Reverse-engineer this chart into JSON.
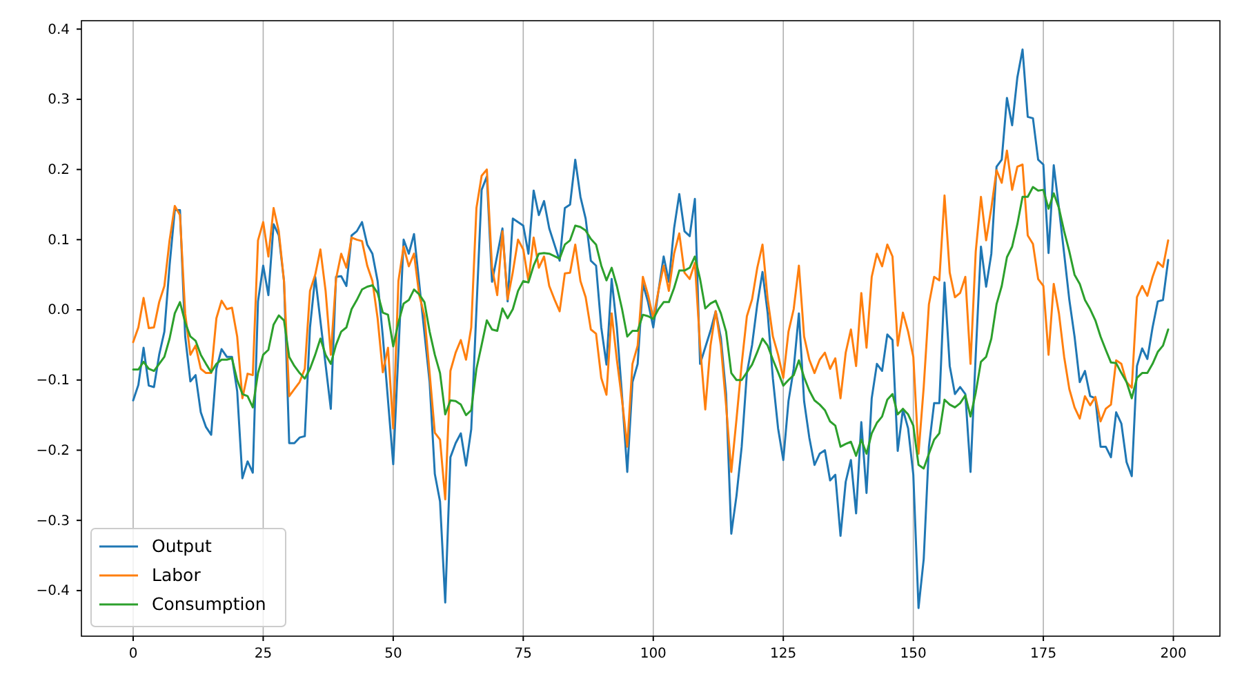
{
  "chart_data": {
    "type": "line",
    "xlim": [
      -9.95,
      208.95
    ],
    "xticks": [
      0,
      25,
      50,
      75,
      100,
      125,
      150,
      175,
      200
    ],
    "ylim": [
      -0.465,
      0.412
    ],
    "yticks": [
      {
        "value": -0.4,
        "label": "−0.4"
      },
      {
        "value": -0.3,
        "label": "−0.3"
      },
      {
        "value": -0.2,
        "label": "−0.2"
      },
      {
        "value": -0.1,
        "label": "−0.1"
      },
      {
        "value": 0,
        "label": "0.0"
      },
      {
        "value": 0.1,
        "label": "0.1"
      },
      {
        "value": 0.2,
        "label": "0.2"
      },
      {
        "value": 0.3,
        "label": "0.3"
      },
      {
        "value": 0.4,
        "label": "0.4"
      }
    ],
    "grid": "x",
    "legend": "bottom left",
    "marker": "none",
    "line_style": "solid",
    "series": [
      {
        "name": "Output",
        "color": "#1f77b4",
        "x": [
          0,
          1,
          2,
          3,
          4,
          5,
          6,
          7,
          8,
          9,
          10,
          11,
          12,
          13,
          14,
          15,
          16,
          17,
          18,
          19,
          20,
          21,
          22,
          23,
          24,
          25,
          26,
          27,
          28,
          29,
          30,
          31,
          32,
          33,
          34,
          35,
          38,
          39,
          40,
          41,
          42,
          43,
          44,
          45,
          46,
          47,
          48,
          50,
          52,
          53,
          54,
          57,
          58,
          59,
          60,
          61,
          62,
          63,
          64,
          65,
          66,
          67,
          68,
          69,
          71,
          72,
          73,
          75,
          76,
          77,
          78,
          79,
          80,
          82,
          83,
          84,
          85,
          86,
          87,
          88,
          89,
          90,
          91,
          92,
          93,
          94,
          95,
          96,
          97,
          98,
          99,
          100,
          101,
          102,
          103,
          104,
          105,
          106,
          107,
          108,
          109,
          111,
          112,
          113,
          114,
          115,
          116,
          117,
          118,
          119,
          120,
          121,
          122,
          123,
          124,
          125,
          126,
          127,
          128,
          129,
          130,
          131,
          132,
          133,
          134,
          135,
          136,
          137,
          138,
          139,
          140,
          141,
          142,
          143,
          144,
          145,
          146,
          147,
          148,
          149,
          150,
          151,
          152,
          153,
          154,
          155,
          156,
          157,
          158,
          159,
          160,
          161,
          162,
          163,
          164,
          165,
          166,
          167,
          168,
          169,
          170,
          171,
          172,
          173,
          174,
          175,
          176,
          177,
          178,
          179,
          180,
          181,
          182,
          183,
          184,
          185,
          186,
          187,
          188,
          189,
          190,
          191,
          192,
          193,
          194,
          195,
          196,
          197,
          198,
          199
        ],
        "values": [
          -0.129,
          -0.107,
          -0.054,
          -0.108,
          -0.11,
          -0.064,
          -0.031,
          0.063,
          0.142,
          0.142,
          -0.038,
          -0.102,
          -0.093,
          -0.146,
          -0.167,
          -0.178,
          -0.084,
          -0.056,
          -0.067,
          -0.067,
          -0.116,
          -0.24,
          -0.216,
          -0.232,
          0.012,
          0.063,
          0.021,
          0.122,
          0.106,
          0.041,
          -0.19,
          -0.19,
          -0.182,
          -0.18,
          -0.025,
          0.047,
          -0.141,
          0.047,
          0.048,
          0.034,
          0.106,
          0.112,
          0.125,
          0.093,
          0.08,
          0.041,
          -0.038,
          -0.22,
          0.1,
          0.08,
          0.108,
          -0.103,
          -0.234,
          -0.273,
          -0.417,
          -0.21,
          -0.19,
          -0.176,
          -0.222,
          -0.17,
          0.0,
          0.171,
          0.19,
          0.04,
          0.116,
          0.012,
          0.13,
          0.12,
          0.08,
          0.17,
          0.135,
          0.155,
          0.116,
          0.07,
          0.145,
          0.15,
          0.214,
          0.161,
          0.13,
          0.07,
          0.063,
          -0.025,
          -0.078,
          0.044,
          -0.025,
          -0.123,
          -0.231,
          -0.103,
          -0.077,
          0.037,
          0.011,
          -0.025,
          0.027,
          0.076,
          0.04,
          0.116,
          0.165,
          0.112,
          0.105,
          0.158,
          -0.077,
          -0.03,
          -0.002,
          -0.04,
          -0.12,
          -0.319,
          -0.265,
          -0.195,
          -0.09,
          -0.05,
          0.008,
          0.054,
          -0.005,
          -0.098,
          -0.169,
          -0.214,
          -0.13,
          -0.084,
          -0.005,
          -0.13,
          -0.182,
          -0.221,
          -0.205,
          -0.2,
          -0.243,
          -0.235,
          -0.322,
          -0.245,
          -0.214,
          -0.29,
          -0.16,
          -0.261,
          -0.126,
          -0.077,
          -0.087,
          -0.035,
          -0.043,
          -0.201,
          -0.142,
          -0.169,
          -0.235,
          -0.425,
          -0.355,
          -0.195,
          -0.133,
          -0.133,
          0.039,
          -0.08,
          -0.12,
          -0.11,
          -0.12,
          -0.231,
          -0.064,
          0.09,
          0.033,
          0.08,
          0.204,
          0.214,
          0.302,
          0.263,
          0.331,
          0.371,
          0.275,
          0.273,
          0.214,
          0.207,
          0.081,
          0.206,
          0.145,
          0.08,
          0.014,
          -0.038,
          -0.103,
          -0.087,
          -0.123,
          -0.126,
          -0.195,
          -0.195,
          -0.21,
          -0.146,
          -0.162,
          -0.217,
          -0.237,
          -0.08,
          -0.055,
          -0.07,
          -0.025,
          0.012,
          0.014,
          0.071
        ]
      },
      {
        "name": "Labor",
        "color": "#ff7f0e",
        "x": [
          0,
          1,
          2,
          3,
          4,
          5,
          6,
          7,
          8,
          9,
          10,
          11,
          12,
          13,
          14,
          15,
          16,
          17,
          18,
          19,
          20,
          21,
          22,
          23,
          24,
          25,
          26,
          27,
          28,
          29,
          30,
          31,
          32,
          33,
          34,
          35,
          36,
          37,
          38,
          39,
          40,
          41,
          42,
          43,
          44,
          45,
          46,
          47,
          48,
          49,
          50,
          51,
          52,
          53,
          54,
          55,
          56,
          57,
          58,
          59,
          60,
          61,
          62,
          63,
          64,
          65,
          66,
          67,
          68,
          69,
          70,
          71,
          72,
          73,
          74,
          75,
          76,
          77,
          78,
          79,
          80,
          81,
          82,
          83,
          84,
          85,
          86,
          87,
          88,
          89,
          90,
          91,
          92,
          93,
          94,
          95,
          96,
          97,
          98,
          99,
          100,
          101,
          102,
          103,
          104,
          105,
          106,
          107,
          108,
          109,
          110,
          111,
          112,
          113,
          114,
          115,
          116,
          117,
          118,
          119,
          120,
          121,
          122,
          123,
          124,
          125,
          126,
          127,
          128,
          129,
          130,
          131,
          132,
          133,
          134,
          135,
          136,
          137,
          138,
          139,
          140,
          141,
          142,
          143,
          144,
          145,
          146,
          147,
          148,
          149,
          150,
          151,
          152,
          153,
          154,
          155,
          156,
          157,
          158,
          159,
          160,
          161,
          162,
          163,
          164,
          165,
          166,
          167,
          168,
          169,
          170,
          171,
          172,
          173,
          174,
          175,
          176,
          177,
          178,
          179,
          180,
          181,
          182,
          183,
          184,
          185,
          186,
          187,
          188,
          189,
          190,
          191,
          192,
          193,
          194,
          195,
          196,
          197,
          198,
          199
        ],
        "values": [
          -0.046,
          -0.025,
          0.017,
          -0.026,
          -0.025,
          0.011,
          0.034,
          0.099,
          0.148,
          0.135,
          -0.005,
          -0.064,
          -0.051,
          -0.084,
          -0.09,
          -0.09,
          -0.012,
          0.013,
          0.001,
          0.003,
          -0.038,
          -0.126,
          -0.091,
          -0.093,
          0.099,
          0.125,
          0.076,
          0.145,
          0.112,
          0.041,
          -0.123,
          -0.113,
          -0.103,
          -0.084,
          0.027,
          0.05,
          0.086,
          0.027,
          -0.064,
          0.044,
          0.08,
          0.06,
          0.103,
          0.1,
          0.098,
          0.063,
          0.041,
          -0.012,
          -0.089,
          -0.054,
          -0.169,
          0.041,
          0.09,
          0.062,
          0.08,
          0.021,
          -0.008,
          -0.09,
          -0.175,
          -0.185,
          -0.27,
          -0.087,
          -0.061,
          -0.043,
          -0.071,
          -0.025,
          0.145,
          0.191,
          0.2,
          0.06,
          0.021,
          0.112,
          0.015,
          0.054,
          0.1,
          0.086,
          0.041,
          0.103,
          0.06,
          0.076,
          0.034,
          0.015,
          -0.002,
          0.052,
          0.053,
          0.093,
          0.041,
          0.018,
          -0.028,
          -0.034,
          -0.097,
          -0.121,
          -0.005,
          -0.071,
          -0.129,
          -0.195,
          -0.077,
          -0.051,
          0.047,
          0.021,
          -0.012,
          0.027,
          0.063,
          0.027,
          0.08,
          0.109,
          0.053,
          0.044,
          0.067,
          -0.051,
          -0.142,
          -0.051,
          -0.002,
          -0.051,
          -0.136,
          -0.231,
          -0.156,
          -0.077,
          -0.009,
          0.015,
          0.06,
          0.093,
          0.015,
          -0.038,
          -0.064,
          -0.097,
          -0.031,
          0.001,
          0.063,
          -0.038,
          -0.071,
          -0.09,
          -0.071,
          -0.061,
          -0.084,
          -0.069,
          -0.126,
          -0.061,
          -0.028,
          -0.08,
          0.024,
          -0.054,
          0.047,
          0.08,
          0.062,
          0.093,
          0.076,
          -0.051,
          -0.004,
          -0.031,
          -0.067,
          -0.205,
          -0.11,
          0.008,
          0.047,
          0.042,
          0.163,
          0.053,
          0.018,
          0.024,
          0.047,
          -0.077,
          0.083,
          0.161,
          0.099,
          0.145,
          0.199,
          0.181,
          0.227,
          0.171,
          0.204,
          0.207,
          0.106,
          0.094,
          0.044,
          0.034,
          -0.064,
          0.037,
          -0.005,
          -0.067,
          -0.113,
          -0.139,
          -0.155,
          -0.123,
          -0.136,
          -0.124,
          -0.159,
          -0.141,
          -0.135,
          -0.072,
          -0.077,
          -0.103,
          -0.111,
          0.018,
          0.034,
          0.02,
          0.047,
          0.068,
          0.061,
          0.099
        ]
      },
      {
        "name": "Consumption",
        "color": "#2ca02c",
        "x": [
          0,
          1,
          2,
          3,
          4,
          5,
          6,
          7,
          8,
          9,
          10,
          11,
          12,
          13,
          14,
          15,
          16,
          17,
          18,
          19,
          20,
          21,
          22,
          23,
          24,
          25,
          26,
          27,
          28,
          29,
          30,
          31,
          32,
          33,
          34,
          35,
          36,
          37,
          38,
          39,
          40,
          41,
          42,
          43,
          44,
          45,
          46,
          47,
          48,
          49,
          50,
          51,
          52,
          53,
          54,
          55,
          56,
          57,
          58,
          59,
          60,
          61,
          62,
          63,
          64,
          65,
          66,
          67,
          68,
          69,
          70,
          71,
          72,
          73,
          74,
          75,
          76,
          77,
          78,
          79,
          80,
          82,
          83,
          84,
          85,
          86,
          87,
          88,
          89,
          90,
          91,
          92,
          93,
          94,
          95,
          96,
          97,
          98,
          99,
          100,
          101,
          102,
          103,
          104,
          105,
          106,
          107,
          108,
          109,
          110,
          111,
          112,
          113,
          114,
          115,
          116,
          117,
          118,
          119,
          120,
          121,
          122,
          123,
          124,
          125,
          126,
          127,
          128,
          129,
          130,
          131,
          132,
          133,
          134,
          135,
          136,
          137,
          138,
          139,
          140,
          141,
          142,
          143,
          144,
          145,
          146,
          147,
          148,
          149,
          150,
          151,
          152,
          153,
          154,
          155,
          156,
          157,
          158,
          159,
          160,
          161,
          162,
          163,
          164,
          165,
          166,
          167,
          168,
          169,
          170,
          171,
          172,
          173,
          174,
          175,
          176,
          177,
          178,
          179,
          180,
          181,
          182,
          183,
          184,
          185,
          186,
          187,
          188,
          189,
          190,
          191,
          192,
          193,
          194,
          195,
          196,
          197,
          198,
          199
        ],
        "values": [
          -0.085,
          -0.085,
          -0.074,
          -0.084,
          -0.087,
          -0.077,
          -0.067,
          -0.041,
          -0.005,
          0.011,
          -0.018,
          -0.038,
          -0.044,
          -0.064,
          -0.077,
          -0.089,
          -0.077,
          -0.071,
          -0.071,
          -0.069,
          -0.1,
          -0.12,
          -0.123,
          -0.139,
          -0.09,
          -0.064,
          -0.057,
          -0.021,
          -0.008,
          -0.015,
          -0.067,
          -0.08,
          -0.09,
          -0.098,
          -0.084,
          -0.064,
          -0.041,
          -0.064,
          -0.077,
          -0.05,
          -0.031,
          -0.025,
          0.001,
          0.014,
          0.029,
          0.033,
          0.035,
          0.024,
          -0.004,
          -0.007,
          -0.052,
          -0.018,
          0.009,
          0.014,
          0.029,
          0.022,
          0.011,
          -0.031,
          -0.064,
          -0.09,
          -0.149,
          -0.129,
          -0.13,
          -0.135,
          -0.15,
          -0.143,
          -0.084,
          -0.05,
          -0.015,
          -0.028,
          -0.03,
          0.002,
          -0.012,
          0.001,
          0.027,
          0.041,
          0.039,
          0.063,
          0.08,
          0.081,
          0.08,
          0.073,
          0.093,
          0.099,
          0.12,
          0.118,
          0.113,
          0.101,
          0.093,
          0.063,
          0.042,
          0.06,
          0.034,
          0.001,
          -0.038,
          -0.03,
          -0.03,
          -0.007,
          -0.009,
          -0.013,
          0.001,
          0.011,
          0.011,
          0.031,
          0.056,
          0.056,
          0.06,
          0.076,
          0.044,
          0.002,
          0.009,
          0.013,
          -0.005,
          -0.031,
          -0.09,
          -0.1,
          -0.1,
          -0.089,
          -0.078,
          -0.06,
          -0.041,
          -0.051,
          -0.071,
          -0.089,
          -0.108,
          -0.1,
          -0.093,
          -0.072,
          -0.096,
          -0.115,
          -0.129,
          -0.135,
          -0.143,
          -0.159,
          -0.165,
          -0.195,
          -0.191,
          -0.188,
          -0.208,
          -0.185,
          -0.205,
          -0.176,
          -0.161,
          -0.152,
          -0.128,
          -0.12,
          -0.149,
          -0.141,
          -0.149,
          -0.165,
          -0.221,
          -0.226,
          -0.205,
          -0.185,
          -0.176,
          -0.128,
          -0.135,
          -0.139,
          -0.133,
          -0.122,
          -0.152,
          -0.118,
          -0.074,
          -0.067,
          -0.041,
          0.008,
          0.034,
          0.075,
          0.09,
          0.122,
          0.161,
          0.161,
          0.175,
          0.17,
          0.171,
          0.144,
          0.166,
          0.145,
          0.112,
          0.083,
          0.05,
          0.037,
          0.014,
          0.001,
          -0.015,
          -0.038,
          -0.057,
          -0.075,
          -0.076,
          -0.09,
          -0.103,
          -0.126,
          -0.097,
          -0.09,
          -0.09,
          -0.077,
          -0.06,
          -0.051,
          -0.028
        ]
      }
    ]
  }
}
